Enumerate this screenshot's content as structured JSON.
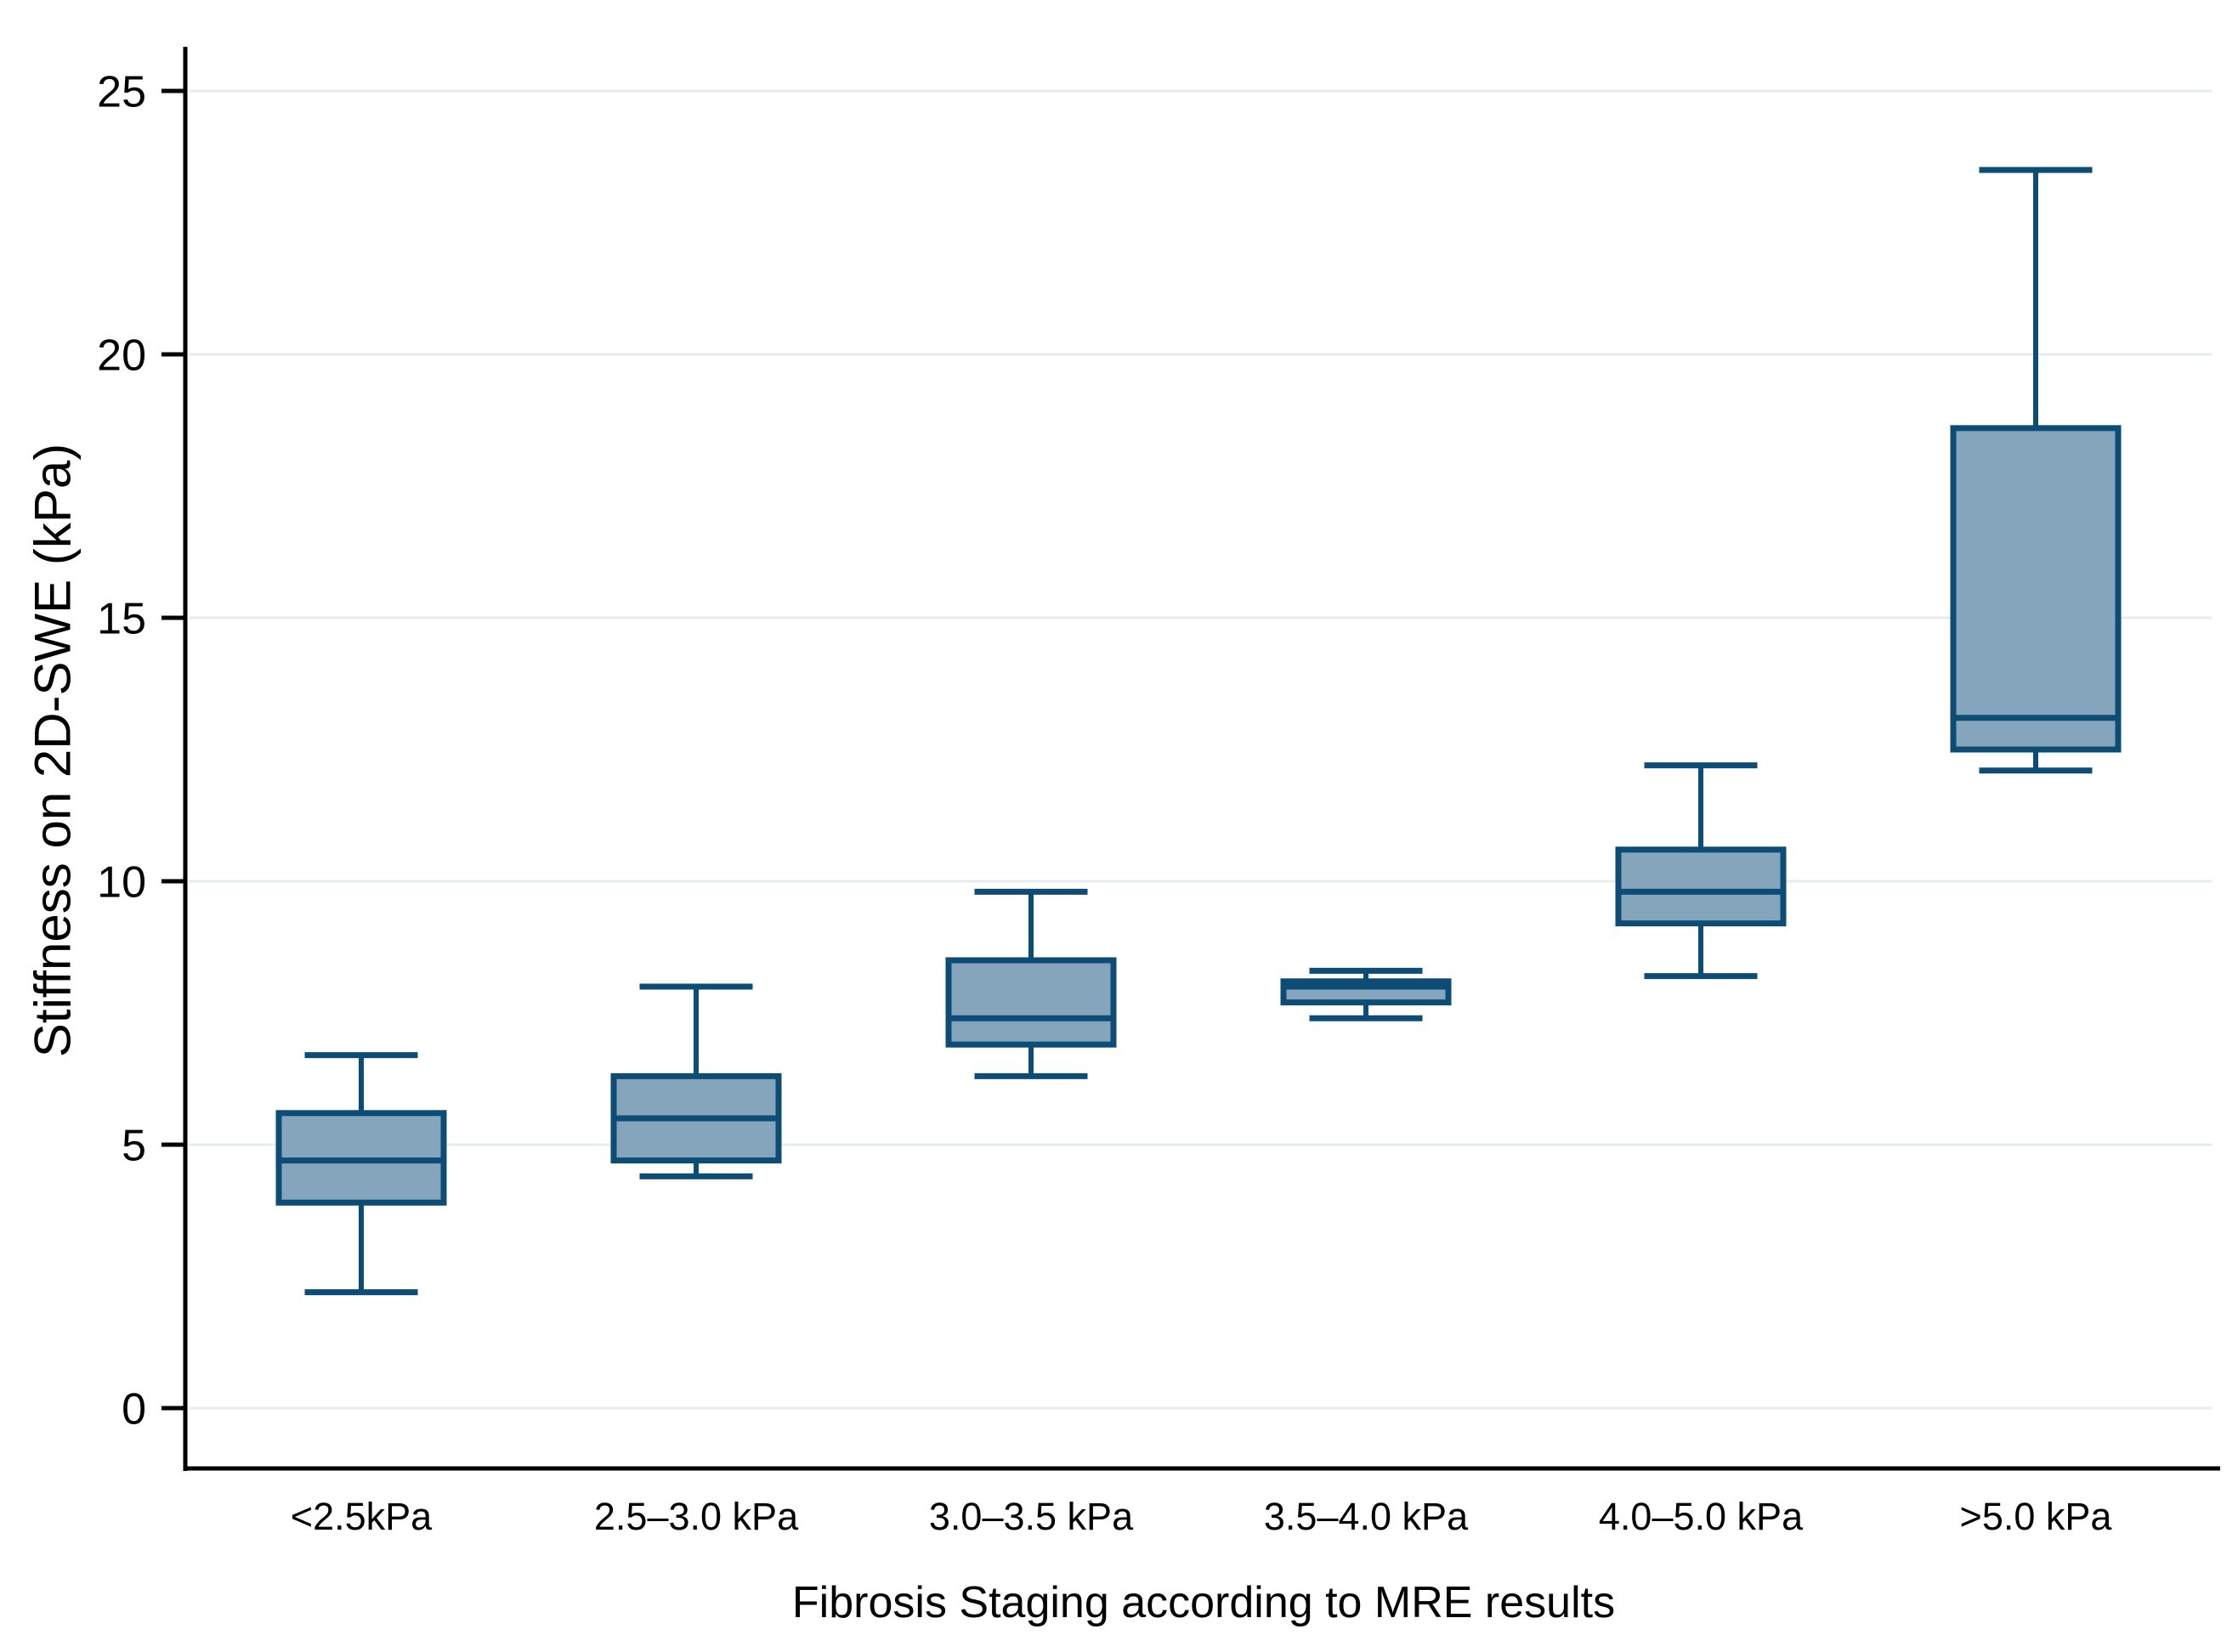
{
  "figure": {
    "background": "#ffffff"
  },
  "chart_data": {
    "type": "box",
    "title": "",
    "xlabel": "Fibrosis Staging according to MRE results",
    "ylabel": "Stiffness on 2D-SWE (kPa)",
    "categories": [
      "<2.5kPa",
      "2.5–3.0 kPa",
      "3.0–3.5 kPa",
      "3.5–4.0 kPa",
      "4.0–5.0 kPa",
      ">5.0 kPa"
    ],
    "series": [
      {
        "category": "<2.5kPa",
        "whisker_low": 2.2,
        "q1": 3.9,
        "median": 4.7,
        "q3": 5.6,
        "whisker_high": 6.7
      },
      {
        "category": "2.5–3.0 kPa",
        "whisker_low": 4.4,
        "q1": 4.7,
        "median": 5.5,
        "q3": 6.3,
        "whisker_high": 8.0
      },
      {
        "category": "3.0–3.5 kPa",
        "whisker_low": 6.3,
        "q1": 6.9,
        "median": 7.4,
        "q3": 8.5,
        "whisker_high": 9.8
      },
      {
        "category": "3.5–4.0 kPa",
        "whisker_low": 7.4,
        "q1": 7.7,
        "median": 8.0,
        "q3": 8.1,
        "whisker_high": 8.3
      },
      {
        "category": "4.0–5.0 kPa",
        "whisker_low": 8.2,
        "q1": 9.2,
        "median": 9.8,
        "q3": 10.6,
        "whisker_high": 12.2
      },
      {
        "category": ">5.0 kPa",
        "whisker_low": 12.1,
        "q1": 12.5,
        "median": 13.1,
        "q3": 18.6,
        "whisker_high": 23.5
      }
    ],
    "y_ticks": [
      0,
      5,
      10,
      15,
      20,
      25
    ],
    "ylim": [
      0,
      25.8
    ],
    "grid": "horizontal",
    "legend": "none",
    "colors": {
      "box_fill": "#84a5bc",
      "box_border": "#0d4d75",
      "gridline": "#e3edf3",
      "axis": "#000000",
      "text": "#000000"
    }
  }
}
